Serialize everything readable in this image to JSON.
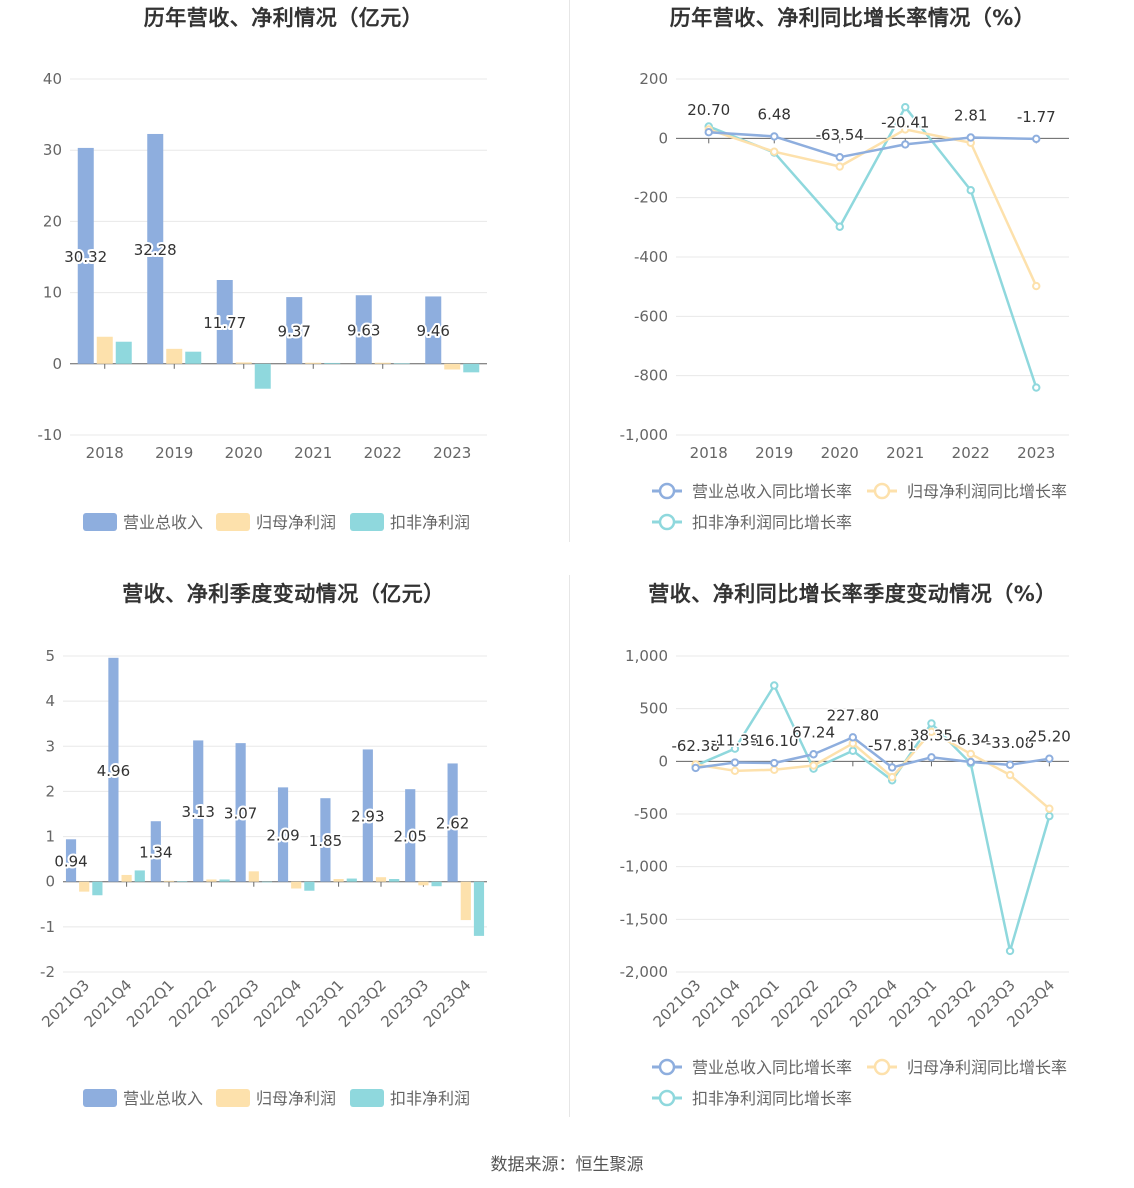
{
  "footer": {
    "source_label": "数据来源：",
    "source_value": "恒生聚源"
  },
  "colors": {
    "revenue": "#8eaede",
    "net_profit": "#fde1ac",
    "deducted_profit": "#8fd8dd",
    "grid": "#e8e8e8",
    "axis": "#666666"
  },
  "chart_data": [
    {
      "type": "bar",
      "title": "历年营收、净利情况（亿元）",
      "categories": [
        "2018",
        "2019",
        "2020",
        "2021",
        "2022",
        "2023"
      ],
      "ylim": [
        -10,
        40
      ],
      "yticks": [
        -10,
        0,
        10,
        20,
        30,
        40
      ],
      "legend_position": "bottom",
      "series": [
        {
          "name": "营业总收入",
          "values": [
            30.32,
            32.28,
            11.77,
            9.37,
            9.63,
            9.46
          ],
          "labels": [
            "30.32",
            "32.28",
            "11.77",
            "9.37",
            "9.63",
            "9.46"
          ]
        },
        {
          "name": "归母净利润",
          "values": [
            3.8,
            2.1,
            0.2,
            0.15,
            0.15,
            -0.8
          ]
        },
        {
          "name": "扣非净利润",
          "values": [
            3.1,
            1.7,
            -3.5,
            0.12,
            0.05,
            -1.2
          ]
        }
      ]
    },
    {
      "type": "line",
      "title": "历年营收、净利同比增长率情况（%）",
      "categories": [
        "2018",
        "2019",
        "2020",
        "2021",
        "2022",
        "2023"
      ],
      "ylim": [
        -1000,
        200
      ],
      "yticks": [
        -1000,
        -800,
        -600,
        -400,
        -200,
        0,
        200
      ],
      "legend_position": "bottom",
      "series": [
        {
          "name": "营业总收入同比增长率",
          "values": [
            20.7,
            6.48,
            -63.54,
            -20.41,
            2.81,
            -1.77
          ],
          "labels": [
            "20.70",
            "6.48",
            "-63.54",
            "-20.41",
            "2.81",
            "-1.77"
          ]
        },
        {
          "name": "归母净利润同比增长率",
          "values": [
            30,
            -45,
            -95,
            30,
            -15,
            -498
          ]
        },
        {
          "name": "扣非净利润同比增长率",
          "values": [
            40,
            -48,
            -298,
            105,
            -175,
            -840
          ]
        }
      ]
    },
    {
      "type": "bar",
      "title": "营收、净利季度变动情况（亿元）",
      "categories": [
        "2021Q3",
        "2021Q4",
        "2022Q1",
        "2022Q2",
        "2022Q3",
        "2022Q4",
        "2023Q1",
        "2023Q2",
        "2023Q3",
        "2023Q4"
      ],
      "ylim": [
        -2,
        5
      ],
      "yticks": [
        -2,
        -1,
        0,
        1,
        2,
        3,
        4,
        5
      ],
      "legend_position": "bottom",
      "series": [
        {
          "name": "营业总收入",
          "values": [
            0.94,
            4.96,
            1.34,
            3.13,
            3.07,
            2.09,
            1.85,
            2.93,
            2.05,
            2.62
          ],
          "labels": [
            "0.94",
            "4.96",
            "1.34",
            "3.13",
            "3.07",
            "2.09",
            "1.85",
            "2.93",
            "2.05",
            "2.62"
          ]
        },
        {
          "name": "归母净利润",
          "values": [
            -0.22,
            0.15,
            0.02,
            0.05,
            0.23,
            -0.15,
            0.06,
            0.1,
            -0.08,
            -0.85
          ]
        },
        {
          "name": "扣非净利润",
          "values": [
            -0.3,
            0.25,
            0.01,
            0.05,
            0.0,
            -0.2,
            0.07,
            0.06,
            -0.1,
            -1.2
          ]
        }
      ]
    },
    {
      "type": "line",
      "title": "营收、净利同比增长率季度变动情况（%）",
      "categories": [
        "2021Q3",
        "2021Q4",
        "2022Q1",
        "2022Q2",
        "2022Q3",
        "2022Q4",
        "2023Q1",
        "2023Q2",
        "2023Q3",
        "2023Q4"
      ],
      "ylim": [
        -2000,
        1000
      ],
      "yticks": [
        -2000,
        -1500,
        -1000,
        -500,
        0,
        500,
        1000
      ],
      "legend_position": "bottom",
      "series": [
        {
          "name": "营业总收入同比增长率",
          "values": [
            -62.38,
            -11.38,
            -16.1,
            67.24,
            227.8,
            -57.81,
            38.35,
            -6.34,
            -33.08,
            25.2
          ],
          "labels": [
            "-62.38",
            "-11.38",
            "-16.10",
            "67.24",
            "227.80",
            "-57.81",
            "38.35",
            "-6.34",
            "-33.08",
            "25.20"
          ]
        },
        {
          "name": "归母净利润同比增长率",
          "values": [
            -30,
            -90,
            -80,
            -40,
            170,
            -150,
            280,
            70,
            -130,
            -450
          ]
        },
        {
          "name": "扣非净利润同比增长率",
          "values": [
            -40,
            120,
            720,
            -70,
            100,
            -180,
            360,
            -20,
            -1800,
            -520
          ]
        }
      ]
    }
  ]
}
